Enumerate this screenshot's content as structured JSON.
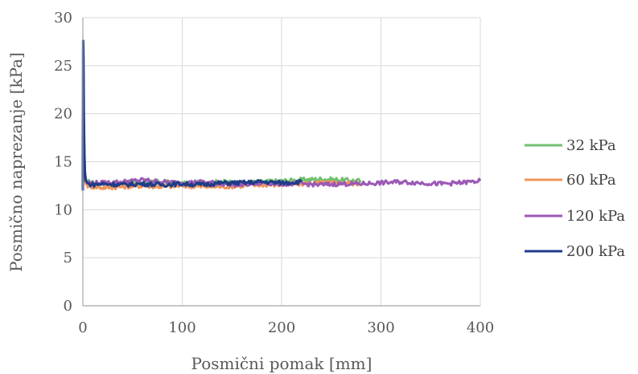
{
  "chart_data": {
    "type": "line",
    "title": "",
    "xlabel": "Posmični pomak [mm]",
    "ylabel": "Posmično naprezanje [kPa]",
    "xlim": [
      0,
      400
    ],
    "ylim": [
      0,
      30
    ],
    "xticks": [
      "0",
      "100",
      "200",
      "300",
      "400"
    ],
    "yticks": [
      "0",
      "5",
      "10",
      "15",
      "20",
      "25",
      "30"
    ],
    "grid": true,
    "legend": "right",
    "series": [
      {
        "name": "32 kPa",
        "color": "#70c070",
        "x": [
          0,
          0.5,
          1,
          2,
          3,
          5,
          10,
          20,
          40,
          60,
          80,
          100,
          120,
          140,
          160,
          180,
          200,
          220,
          240,
          260,
          280
        ],
        "y": [
          12.5,
          19,
          16,
          13.5,
          13.0,
          12.9,
          12.8,
          12.7,
          12.8,
          12.8,
          12.9,
          12.7,
          12.8,
          12.9,
          12.8,
          12.9,
          13.0,
          13.1,
          13.2,
          13.1,
          13.0
        ]
      },
      {
        "name": "60 kPa",
        "color": "#f0955a",
        "x": [
          0,
          0.5,
          1,
          2,
          3,
          5,
          10,
          20,
          40,
          60,
          80,
          100,
          120,
          140,
          160,
          180,
          200,
          220,
          240,
          260,
          280
        ],
        "y": [
          12.3,
          21,
          17,
          13.5,
          12.7,
          12.5,
          12.4,
          12.3,
          12.4,
          12.5,
          12.4,
          12.5,
          12.4,
          12.4,
          12.5,
          12.6,
          12.6,
          12.7,
          12.8,
          12.8,
          12.7
        ]
      },
      {
        "name": "120 kPa",
        "color": "#9b59b6",
        "x": [
          0,
          0.5,
          1,
          2,
          3,
          5,
          10,
          20,
          40,
          60,
          80,
          100,
          120,
          140,
          160,
          180,
          200,
          220,
          240,
          260,
          280,
          300,
          320,
          340,
          360,
          380,
          400
        ],
        "y": [
          12.5,
          24,
          18,
          14,
          13.0,
          12.8,
          12.8,
          12.8,
          12.9,
          13.1,
          12.9,
          12.8,
          12.9,
          12.7,
          12.6,
          12.8,
          12.7,
          12.7,
          12.6,
          12.7,
          12.7,
          12.8,
          12.9,
          12.8,
          12.7,
          12.8,
          13.0
        ]
      },
      {
        "name": "200 kPa",
        "color": "#1f3c88",
        "x": [
          0,
          0.3,
          0.6,
          1,
          1.5,
          2,
          3,
          5,
          10,
          20,
          40,
          60,
          80,
          100,
          120,
          140,
          160,
          180,
          200,
          220
        ],
        "y": [
          12.0,
          27.6,
          26,
          20,
          16,
          14,
          13.0,
          12.7,
          12.6,
          12.7,
          12.6,
          12.7,
          12.6,
          12.7,
          12.6,
          12.8,
          12.8,
          12.9,
          12.8,
          12.9
        ]
      }
    ]
  }
}
